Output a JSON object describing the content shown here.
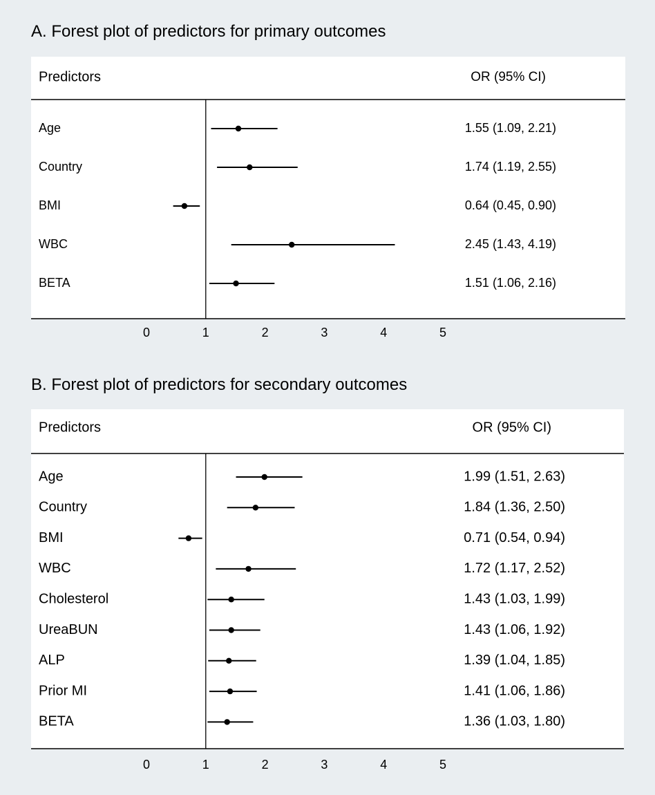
{
  "chart_data": [
    {
      "type": "forest",
      "title": "A.  Forest plot of predictors for primary outcomes",
      "header_left": "Predictors",
      "header_right": "OR (95% CI)",
      "reference_line": 1,
      "xlim": [
        0,
        5
      ],
      "xticks": [
        "0",
        "1",
        "2",
        "3",
        "4",
        "5"
      ],
      "rows": [
        {
          "label": "Age",
          "or": 1.55,
          "lo": 1.09,
          "hi": 2.21,
          "ci_text": "1.55 (1.09, 2.21)"
        },
        {
          "label": "Country",
          "or": 1.74,
          "lo": 1.19,
          "hi": 2.55,
          "ci_text": "1.74 (1.19, 2.55)"
        },
        {
          "label": "BMI",
          "or": 0.64,
          "lo": 0.45,
          "hi": 0.9,
          "ci_text": "0.64 (0.45, 0.90)"
        },
        {
          "label": "WBC",
          "or": 2.45,
          "lo": 1.43,
          "hi": 4.19,
          "ci_text": "2.45 (1.43, 4.19)"
        },
        {
          "label": "BETA",
          "or": 1.51,
          "lo": 1.06,
          "hi": 2.16,
          "ci_text": "1.51 (1.06, 2.16)"
        }
      ]
    },
    {
      "type": "forest",
      "title": "B.  Forest plot of predictors for secondary outcomes",
      "header_left": "Predictors",
      "header_right": "OR (95% CI)",
      "reference_line": 1,
      "xlim": [
        0,
        5
      ],
      "xticks": [
        "0",
        "1",
        "2",
        "3",
        "4",
        "5"
      ],
      "rows": [
        {
          "label": "Age",
          "or": 1.99,
          "lo": 1.51,
          "hi": 2.63,
          "ci_text": "1.99 (1.51, 2.63)"
        },
        {
          "label": "Country",
          "or": 1.84,
          "lo": 1.36,
          "hi": 2.5,
          "ci_text": "1.84 (1.36, 2.50)"
        },
        {
          "label": "BMI",
          "or": 0.71,
          "lo": 0.54,
          "hi": 0.94,
          "ci_text": "0.71 (0.54, 0.94)"
        },
        {
          "label": "WBC",
          "or": 1.72,
          "lo": 1.17,
          "hi": 2.52,
          "ci_text": "1.72 (1.17, 2.52)"
        },
        {
          "label": "Cholesterol",
          "or": 1.43,
          "lo": 1.03,
          "hi": 1.99,
          "ci_text": "1.43 (1.03, 1.99)"
        },
        {
          "label": "UreaBUN",
          "or": 1.43,
          "lo": 1.06,
          "hi": 1.92,
          "ci_text": "1.43 (1.06, 1.92)"
        },
        {
          "label": "ALP",
          "or": 1.39,
          "lo": 1.04,
          "hi": 1.85,
          "ci_text": "1.39 (1.04, 1.85)"
        },
        {
          "label": "Prior MI",
          "or": 1.41,
          "lo": 1.06,
          "hi": 1.86,
          "ci_text": "1.41 (1.06, 1.86)"
        },
        {
          "label": "BETA",
          "or": 1.36,
          "lo": 1.03,
          "hi": 1.8,
          "ci_text": "1.36 (1.03, 1.80)"
        }
      ]
    }
  ]
}
